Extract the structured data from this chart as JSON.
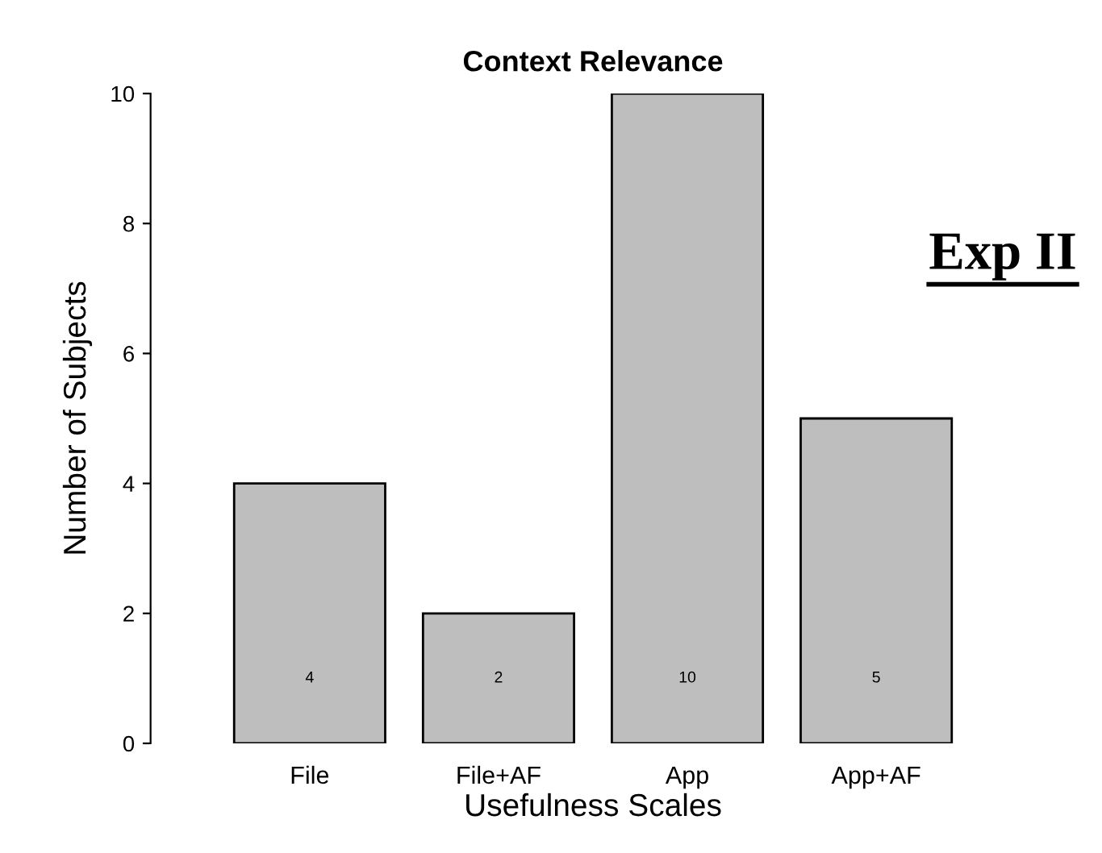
{
  "chart_data": {
    "type": "bar",
    "title": "Context Relevance",
    "xlabel": "Usefulness Scales",
    "ylabel": "Number of Subjects",
    "categories": [
      "File",
      "File+AF",
      "App",
      "App+AF"
    ],
    "values": [
      4,
      2,
      10,
      5
    ],
    "color": "#bebebe",
    "ylim": [
      0,
      10
    ],
    "yticks": [
      0,
      2,
      4,
      6,
      8,
      10
    ],
    "grid": false,
    "legend": false,
    "data_labels": true,
    "annotations": [
      "Exp II"
    ]
  }
}
